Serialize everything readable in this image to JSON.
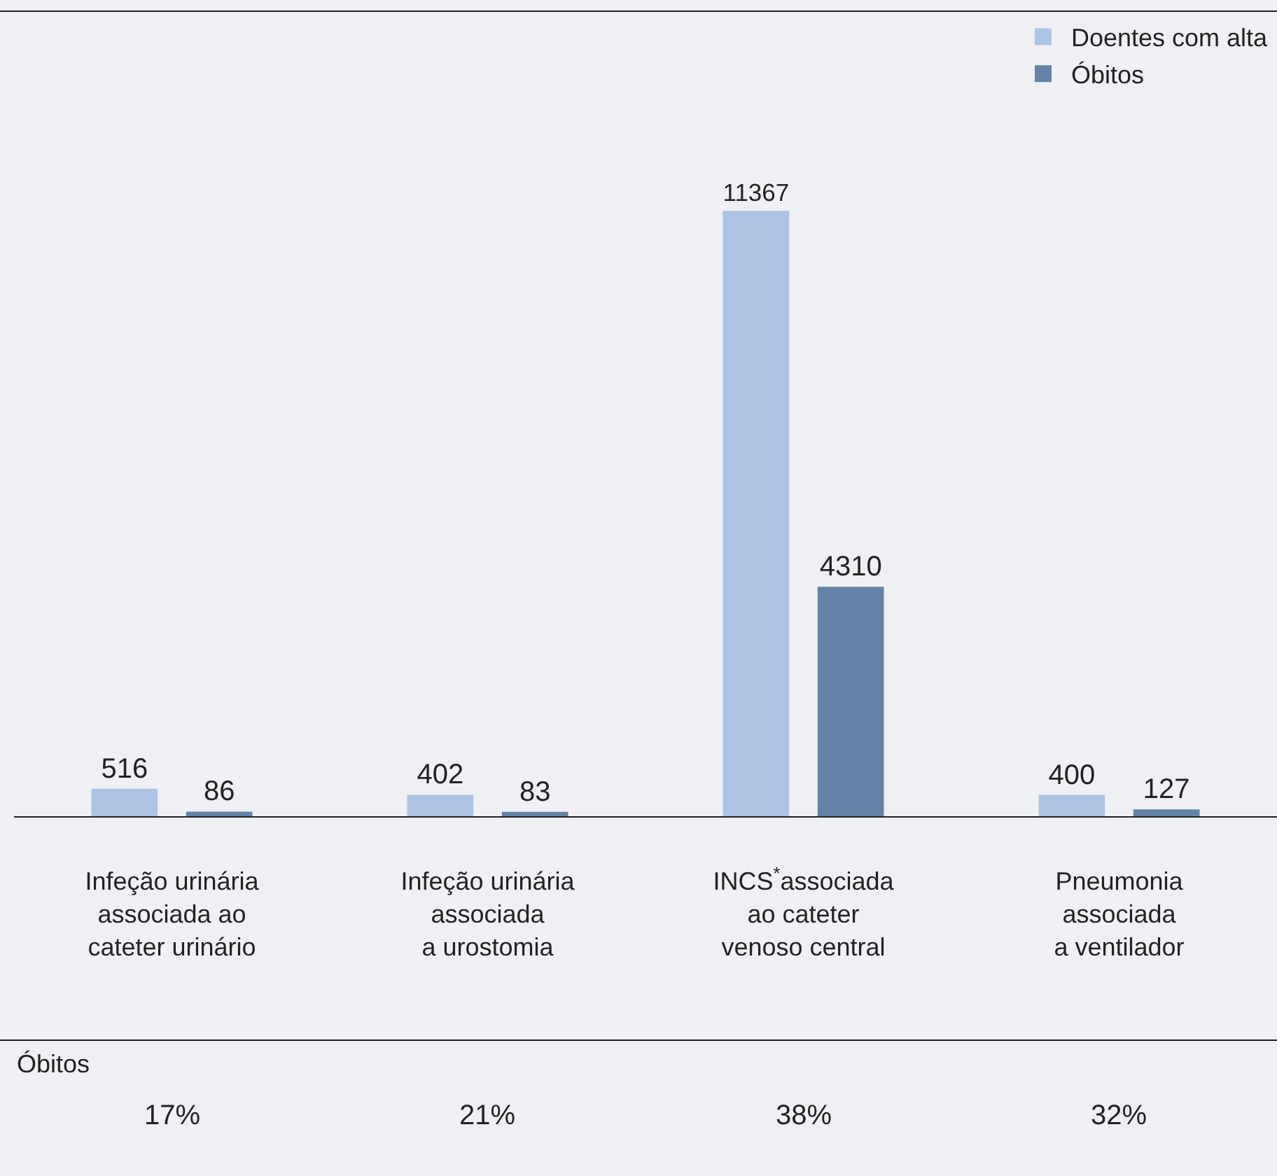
{
  "chart_data": {
    "type": "bar",
    "categories": [
      "Infeção urinária\nassociada ao\ncateter urinário",
      "Infeção urinária\nassociada\na urostomia",
      "INCS$^{*}$associada\nao cateter\nvenoso central",
      "Pneumonia\nassociada\na ventilador"
    ],
    "series": [
      {
        "name": "Doentes com alta",
        "color": "#aec4e5",
        "values": [
          516,
          402,
          11367,
          400
        ]
      },
      {
        "name": "Óbitos",
        "color": "#6583a8",
        "values": [
          86,
          83,
          4310,
          127
        ]
      }
    ],
    "data_labels": true,
    "legend": "top right",
    "grid": false,
    "annotations": [
      "Óbitos",
      "17%",
      "21%",
      "38%",
      "32%"
    ]
  }
}
